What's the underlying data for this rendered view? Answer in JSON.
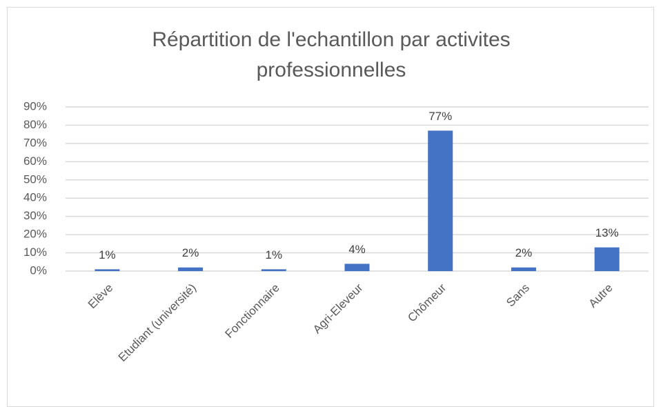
{
  "chart_data": {
    "type": "bar",
    "title": "Répartition de l'echantillon par activites professionnelles",
    "categories": [
      "Elève",
      "Etudiant (université)",
      "Fonctionnaire",
      "Agri-Eleveur",
      "Chômeur",
      "Sans",
      "Autre"
    ],
    "values": [
      1,
      2,
      1,
      4,
      77,
      2,
      13
    ],
    "value_labels": [
      "1%",
      "2%",
      "1%",
      "4%",
      "77%",
      "2%",
      "13%"
    ],
    "color": "#4472c4",
    "ylim": [
      0,
      90
    ],
    "yticks": [
      {
        "value": 0,
        "label": "0%"
      },
      {
        "value": 10,
        "label": "10%"
      },
      {
        "value": 20,
        "label": "20%"
      },
      {
        "value": 30,
        "label": "30%"
      },
      {
        "value": 40,
        "label": "40%"
      },
      {
        "value": 50,
        "label": "50%"
      },
      {
        "value": 60,
        "label": "60%"
      },
      {
        "value": 70,
        "label": "70%"
      },
      {
        "value": 80,
        "label": "80%"
      },
      {
        "value": 90,
        "label": "90%"
      }
    ],
    "grid": true
  }
}
